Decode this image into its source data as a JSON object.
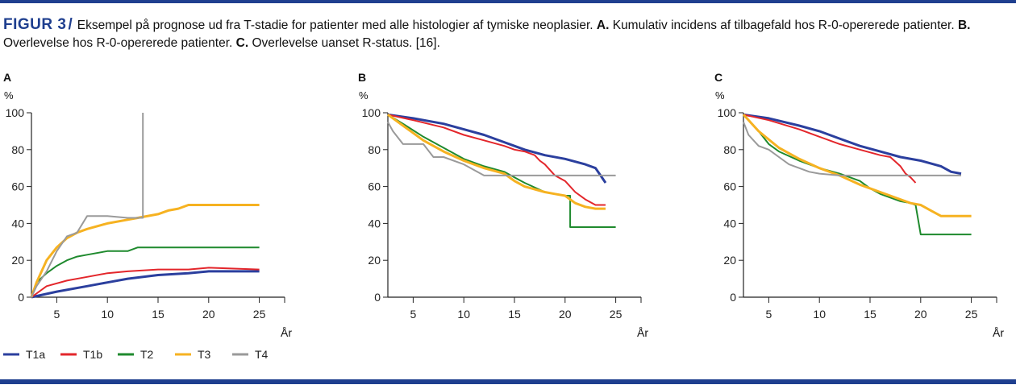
{
  "caption": {
    "fig_label": "FIGUR 3",
    "slash": "/",
    "p1": "Eksempel på prognose ud fra T-stadie for patienter med alle histologier af tymiske neoplasier. ",
    "a": "A.",
    "p2": " Kumulativ incidens af tilbagefald hos R-0-opererede patienter. ",
    "b": "B.",
    "p3": " Overlevelse hos R-0-opererede patienter. ",
    "c": "C.",
    "p4": " Overlevelse uanset R-status. [16]."
  },
  "colors": {
    "T1a": "#2b3f9e",
    "T1b": "#e3262b",
    "T2": "#1f8a2e",
    "T3": "#f6b221",
    "T4": "#9a9a9a",
    "accent": "#1f3f8f"
  },
  "legend": [
    {
      "label": "T1a",
      "color": "#2b3f9e"
    },
    {
      "label": "T1b",
      "color": "#e3262b"
    },
    {
      "label": "T2",
      "color": "#1f8a2e"
    },
    {
      "label": "T3",
      "color": "#f6b221"
    },
    {
      "label": "T4",
      "color": "#9a9a9a"
    }
  ],
  "chart_data": [
    {
      "panel": "A",
      "type": "line",
      "ylabel": "%",
      "xlabel": "År",
      "xlim": [
        2.5,
        27.5
      ],
      "ylim": [
        0,
        100
      ],
      "xticks": [
        5,
        10,
        15,
        20,
        25
      ],
      "yticks": [
        0,
        20,
        40,
        60,
        80,
        100
      ],
      "series": [
        {
          "name": "T1a",
          "x": [
            2.5,
            5,
            8,
            10,
            12,
            15,
            18,
            20,
            23,
            25
          ],
          "y": [
            0,
            3,
            6,
            8,
            10,
            12,
            13,
            14,
            14,
            14
          ]
        },
        {
          "name": "T1b",
          "x": [
            2.5,
            4,
            6,
            8,
            10,
            12,
            15,
            18,
            20,
            25
          ],
          "y": [
            0,
            6,
            9,
            11,
            13,
            14,
            15,
            15,
            16,
            15
          ]
        },
        {
          "name": "T2",
          "x": [
            2.5,
            3,
            4,
            5,
            6,
            7,
            8,
            10,
            12,
            13,
            15,
            18,
            20,
            25
          ],
          "y": [
            0,
            8,
            13,
            17,
            20,
            22,
            23,
            25,
            25,
            27,
            27,
            27,
            27,
            27
          ]
        },
        {
          "name": "T3",
          "x": [
            2.5,
            3,
            4,
            5,
            6,
            7,
            8,
            10,
            12,
            13,
            15,
            16,
            17,
            18,
            20,
            25
          ],
          "y": [
            0,
            8,
            20,
            27,
            32,
            35,
            37,
            40,
            42,
            43,
            45,
            47,
            48,
            50,
            50,
            50
          ]
        },
        {
          "name": "T4",
          "x": [
            2.5,
            3,
            4,
            5,
            6,
            7,
            8,
            10,
            12,
            13.5,
            13.5
          ],
          "y": [
            0,
            6,
            14,
            25,
            33,
            35,
            44,
            44,
            43,
            43,
            100
          ]
        }
      ]
    },
    {
      "panel": "B",
      "type": "line",
      "ylabel": "%",
      "xlabel": "År",
      "xlim": [
        2.5,
        27.5
      ],
      "ylim": [
        0,
        100
      ],
      "xticks": [
        5,
        10,
        15,
        20,
        25
      ],
      "yticks": [
        0,
        20,
        40,
        60,
        80,
        100
      ],
      "series": [
        {
          "name": "T1a",
          "x": [
            2.5,
            5,
            8,
            10,
            12,
            14,
            16,
            18,
            20,
            22,
            23,
            23.5,
            24
          ],
          "y": [
            99,
            97,
            94,
            91,
            88,
            84,
            80,
            77,
            75,
            72,
            70,
            66,
            62
          ]
        },
        {
          "name": "T1b",
          "x": [
            2.5,
            5,
            8,
            10,
            12,
            14,
            15,
            16,
            17,
            17.5,
            18,
            19,
            20,
            21,
            22,
            23,
            24
          ],
          "y": [
            99,
            96,
            92,
            88,
            85,
            82,
            80,
            79,
            77,
            74,
            72,
            66,
            63,
            57,
            53,
            50,
            50
          ]
        },
        {
          "name": "T2",
          "x": [
            2.5,
            4,
            6,
            8,
            10,
            12,
            14,
            15,
            16,
            18,
            19,
            20,
            20.5,
            20.5,
            25
          ],
          "y": [
            99,
            94,
            87,
            81,
            75,
            71,
            68,
            65,
            62,
            57,
            56,
            55,
            55,
            38,
            38
          ]
        },
        {
          "name": "T3",
          "x": [
            2.5,
            4,
            6,
            8,
            10,
            12,
            14,
            15,
            16,
            18,
            19,
            20,
            21,
            22,
            23,
            24
          ],
          "y": [
            99,
            93,
            85,
            79,
            74,
            70,
            67,
            63,
            60,
            57,
            56,
            55,
            51,
            49,
            48,
            48
          ]
        },
        {
          "name": "T4",
          "x": [
            2.5,
            3,
            4,
            6,
            7,
            8,
            10,
            12,
            15,
            18,
            20,
            22,
            25
          ],
          "y": [
            95,
            90,
            83,
            83,
            76,
            76,
            72,
            66,
            66,
            66,
            66,
            66,
            66
          ]
        }
      ]
    },
    {
      "panel": "C",
      "type": "line",
      "ylabel": "%",
      "xlabel": "År",
      "xlim": [
        2.5,
        27.5
      ],
      "ylim": [
        0,
        100
      ],
      "xticks": [
        5,
        10,
        15,
        20,
        25
      ],
      "yticks": [
        0,
        20,
        40,
        60,
        80,
        100
      ],
      "series": [
        {
          "name": "T1a",
          "x": [
            2.5,
            5,
            8,
            10,
            12,
            14,
            16,
            18,
            20,
            22,
            23,
            24
          ],
          "y": [
            99,
            97,
            93,
            90,
            86,
            82,
            79,
            76,
            74,
            71,
            68,
            67
          ]
        },
        {
          "name": "T1b",
          "x": [
            2.5,
            5,
            8,
            10,
            12,
            14,
            16,
            17,
            18,
            18.5,
            19,
            19.5
          ],
          "y": [
            99,
            96,
            91,
            87,
            83,
            80,
            77,
            76,
            71,
            67,
            65,
            62
          ]
        },
        {
          "name": "T2",
          "x": [
            2.5,
            4,
            5,
            6,
            8,
            10,
            12,
            14,
            15,
            16,
            18,
            19,
            19.5,
            20,
            25
          ],
          "y": [
            99,
            90,
            83,
            79,
            74,
            70,
            67,
            63,
            59,
            56,
            52,
            51,
            50,
            34,
            34
          ]
        },
        {
          "name": "T3",
          "x": [
            2.5,
            4,
            6,
            8,
            10,
            12,
            14,
            16,
            18,
            19,
            20,
            21,
            22,
            25
          ],
          "y": [
            99,
            90,
            81,
            75,
            70,
            66,
            61,
            57,
            53,
            51,
            50,
            47,
            44,
            44
          ]
        },
        {
          "name": "T4",
          "x": [
            2.5,
            3,
            4,
            5,
            6,
            7,
            8,
            9,
            10,
            12,
            15,
            18,
            20,
            22,
            24
          ],
          "y": [
            95,
            88,
            82,
            80,
            76,
            72,
            70,
            68,
            67,
            66,
            66,
            66,
            66,
            66,
            66
          ]
        }
      ]
    }
  ]
}
